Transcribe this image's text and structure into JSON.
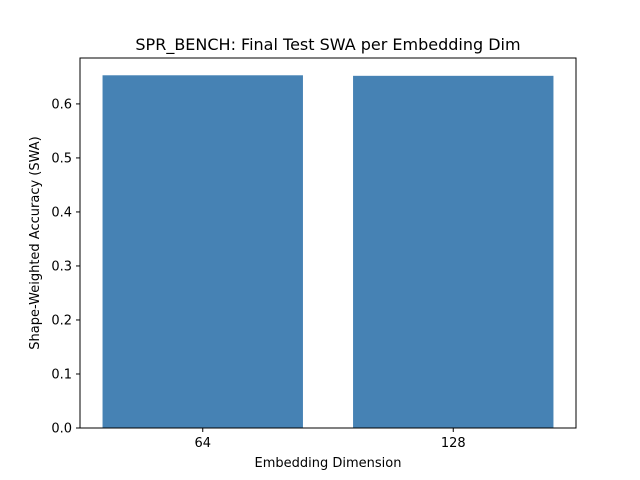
{
  "chart_data": {
    "type": "bar",
    "title": "SPR_BENCH: Final Test SWA per Embedding Dim",
    "xlabel": "Embedding Dimension",
    "ylabel": "Shape-Weighted Accuracy (SWA)",
    "categories": [
      "64",
      "128"
    ],
    "values": [
      0.653,
      0.652
    ],
    "ylim": [
      0,
      0.685
    ],
    "yticks": [
      0.0,
      0.1,
      0.2,
      0.3,
      0.4,
      0.5,
      0.6
    ],
    "ytick_labels": [
      "0.0",
      "0.1",
      "0.2",
      "0.3",
      "0.4",
      "0.5",
      "0.6"
    ],
    "bar_color": "#4682b4",
    "grid": false
  }
}
